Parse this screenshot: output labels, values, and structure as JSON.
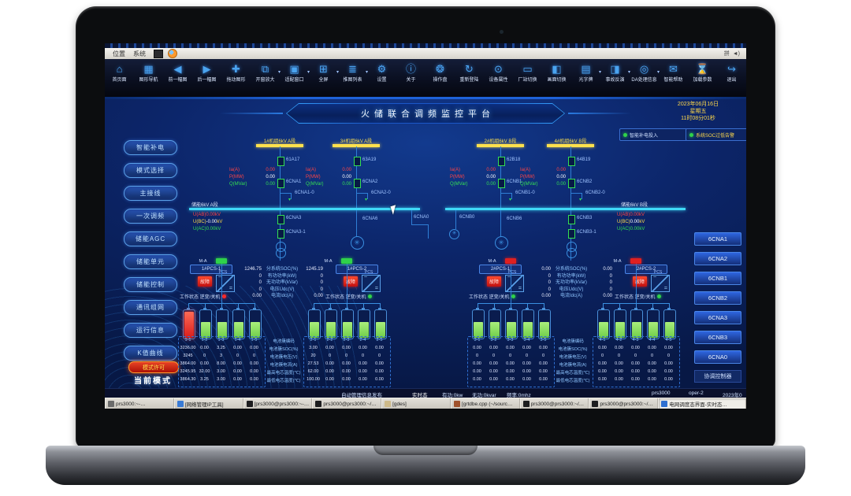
{
  "window": {
    "menus": [
      "位置",
      "系统"
    ],
    "tray_text": "拼"
  },
  "toolbar": {
    "items": [
      {
        "id": "home",
        "label": "首页面",
        "glyph": "⌂"
      },
      {
        "id": "graph-nav",
        "label": "图形导航",
        "glyph": "▦"
      },
      {
        "id": "prev-view",
        "label": "前一幅图",
        "glyph": "◀"
      },
      {
        "id": "next-view",
        "label": "后一幅图",
        "glyph": "▶"
      },
      {
        "id": "pan",
        "label": "拖动图形",
        "glyph": "✚"
      },
      {
        "id": "zoom-window",
        "label": "开窗放大",
        "glyph": "⧉",
        "dropdown": true
      },
      {
        "id": "fit-window",
        "label": "适配窗口",
        "glyph": "▣",
        "dropdown": true
      },
      {
        "id": "fullscreen",
        "label": "全屏",
        "glyph": "⊞",
        "dropdown": true
      },
      {
        "id": "view-list",
        "label": "推图列表",
        "glyph": "≣",
        "dropdown": true
      },
      {
        "id": "settings",
        "label": "设置",
        "glyph": "⚙"
      },
      {
        "id": "about",
        "label": "关于",
        "glyph": "ⓘ"
      },
      {
        "id": "operation-panel",
        "label": "操作盘",
        "glyph": "❂"
      },
      {
        "id": "relogin",
        "label": "重新登陆",
        "glyph": "↻"
      },
      {
        "id": "device-props",
        "label": "设备属性",
        "glyph": "⊙"
      },
      {
        "id": "station-switch",
        "label": "厂站切换",
        "glyph": "▭"
      },
      {
        "id": "screen-switch",
        "label": "画面切换",
        "glyph": "◧"
      },
      {
        "id": "light-board",
        "label": "光字牌",
        "glyph": "▤",
        "dropdown": true
      },
      {
        "id": "incident-replay",
        "label": "事故反演",
        "glyph": "◨",
        "dropdown": true
      },
      {
        "id": "da-info",
        "label": "DA处理信息",
        "glyph": "◎",
        "dropdown": true
      },
      {
        "id": "smart-help",
        "label": "智能帮助",
        "glyph": "✉"
      },
      {
        "id": "load-params",
        "label": "加载参数",
        "glyph": "⌛"
      },
      {
        "id": "exit",
        "label": "退出",
        "glyph": "↪"
      }
    ]
  },
  "header": {
    "title": "火储联合调频监控平台",
    "date": "2023年06月16日",
    "weekday": "星期五",
    "time": "11时08分01秒",
    "indicators": [
      {
        "label": "智能补电投入",
        "color": "#2fd24a",
        "text_color": "#cfe0ff"
      },
      {
        "label": "系统SOC过低告警",
        "color": "#2fd24a",
        "text_color": "#ffd94a"
      }
    ]
  },
  "left_menu": [
    "智能补电",
    "模式选择",
    "主接线",
    "一次调频",
    "储能AGC",
    "储能单元",
    "储能控制",
    "通讯组网",
    "运行信息",
    "K值曲线"
  ],
  "right_menu": {
    "buttons": [
      "6CNA1",
      "6CNA2",
      "6CNB1",
      "6CNB2",
      "6CNA3",
      "6CNB3",
      "6CNA0"
    ],
    "footer": "协调控制器"
  },
  "mode": {
    "badge": "模式许可",
    "label": "当前模式"
  },
  "diagram": {
    "meas_labels": {
      "ia": "Ia(A)",
      "p": "P(MW)",
      "q": "Q(MVar)"
    },
    "feeders": [
      {
        "bus": "1#机组6kV A段",
        "cb_top": "61A17",
        "cb_mid": "6CNA1",
        "branch": "6CNA1-0",
        "ia": "0.00",
        "p": "0.00",
        "q": "0.00"
      },
      {
        "bus": "3#机组6kV A段",
        "cb_top": "63A19",
        "cb_mid": "6CNA2",
        "branch": "6CNA2-0",
        "ia": "0.00",
        "p": "0.00",
        "q": "0.00"
      },
      {
        "bus": "2#机组6kV B段",
        "cb_top": "62B18",
        "cb_mid": "6CNB1",
        "branch": "6CNB1-0",
        "ia": "0.00",
        "p": "0.00",
        "q": "0.00"
      },
      {
        "bus": "4#机组6kV B段",
        "cb_top": "64B19",
        "cb_mid": "6CNB2",
        "branch": "6CNB2-0",
        "ia": "0.00",
        "p": "0.00",
        "q": "0.00"
      }
    ],
    "bus_a": {
      "label": "储能6kV A段",
      "u_rows": [
        {
          "label": "U(AB)",
          "value": "0.00",
          "unit": "kV",
          "color": "#ff4545",
          "vcolor": "#ff4545"
        },
        {
          "label": "U(BC)",
          "value": "-0.00",
          "unit": "kV",
          "color": "#ffd94a",
          "vcolor": "#ffffff"
        },
        {
          "label": "U(AC)",
          "value": "0.00",
          "unit": "kV",
          "color": "#35e052",
          "vcolor": "#35e052"
        }
      ]
    },
    "bus_b": {
      "label": "储能6kV B段",
      "u_rows": [
        {
          "label": "U(AB)",
          "value": "0.00",
          "unit": "kV",
          "color": "#ff4545",
          "vcolor": "#ff4545"
        },
        {
          "label": "U(BC)",
          "value": "0.00",
          "unit": "kV",
          "color": "#ffd94a",
          "vcolor": "#ffffff"
        },
        {
          "label": "U(AC)",
          "value": "0.00",
          "unit": "kV",
          "color": "#35e052",
          "vcolor": "#35e052"
        }
      ]
    },
    "devices": {
      "f1": [
        "6CNA3",
        "6CNA3-1"
      ],
      "g1": "6CNA6",
      "br_a": "6CNA0",
      "br_b": "6CNB0",
      "g2": "6CNB6",
      "f4": [
        "6CNB3",
        "6CNB3-1"
      ]
    },
    "icons": {
      "ground_transformer": "✳",
      "branch_arrow": "▾"
    }
  },
  "pcs": {
    "status_label": "工作状态 逆变/关机",
    "fault_label": "故障",
    "converter_label": "PCS",
    "converter_glyphs": [
      "~",
      "="
    ],
    "row_labels": [
      "分系统SOC(%)",
      "有功功率(kW)",
      "无功功率(kVar)",
      "电压Udc(V)",
      "电流Idc(A)"
    ],
    "left": {
      "units": [
        {
          "name": "1#PCS-1",
          "led": "#ff2a2a"
        },
        {
          "name": "1#PCS-2",
          "led": "#2fd24a"
        }
      ],
      "values_left": [
        "1246.75",
        "0",
        "0",
        "0",
        "0.00"
      ],
      "values_right": [
        "1245.19",
        "0",
        "0",
        "0",
        "0.00"
      ]
    },
    "right": {
      "units": [
        {
          "name": "2#PCS-1",
          "led": "#2fd24a"
        },
        {
          "name": "2#PCS-2",
          "led": "#2fd24a"
        }
      ],
      "values_left": [
        "0.00",
        "0",
        "0",
        "0",
        "0.00"
      ],
      "values_right": [
        "0.00",
        "0",
        "0",
        "0",
        "0.00"
      ]
    }
  },
  "batteries": {
    "switch_label": "M-A",
    "groups": [
      {
        "switch": "closed",
        "cells": [
          "alarm",
          "ok",
          "ok",
          "ok",
          "ok"
        ]
      },
      {
        "switch": "closed",
        "cells": [
          "ok",
          "ok",
          "ok",
          "ok",
          "ok"
        ]
      },
      {
        "switch": "open",
        "cells": [
          "ok",
          "ok",
          "ok",
          "ok",
          "ok"
        ]
      },
      {
        "switch": "open",
        "cells": [
          "ok",
          "ok",
          "ok",
          "ok",
          "ok"
        ]
      }
    ]
  },
  "tables": {
    "row_labels": [
      "电池簇编码",
      "电池簇SOC(%)",
      "电池簇电压(V)",
      "电池簇电流(A)",
      "最高电芯温度(℃)",
      "最低电芯温度(℃)"
    ],
    "left": {
      "ids": [
        "1-1",
        "1-2",
        "1-3",
        "1-4",
        "1-5",
        "2-1",
        "2-2",
        "2-3",
        "2-4",
        "2-5"
      ],
      "rows": [
        [
          "3236.00",
          "0.00",
          "3.25",
          "0.00",
          "0.00",
          "3.00",
          "0.00",
          "0.00",
          "0.00",
          "0.00"
        ],
        [
          "3245",
          "0",
          "3",
          "0",
          "0",
          "20",
          "0",
          "0",
          "0",
          "0"
        ],
        [
          "3864.00",
          "0.00",
          "8.00",
          "0.00",
          "0.00",
          "27.53",
          "0.00",
          "0.00",
          "0.00",
          "0.00"
        ],
        [
          "3245.95",
          "32.00",
          "3.00",
          "0.00",
          "0.00",
          "62.00",
          "0.00",
          "0.00",
          "0.00",
          "0.00"
        ],
        [
          "3864.30",
          "3.25",
          "3.00",
          "0.00",
          "0.00",
          "100.00",
          "0.00",
          "0.00",
          "0.00",
          "0.00"
        ]
      ]
    },
    "right": {
      "ids": [
        "3-1",
        "3-2",
        "3-3",
        "3-4",
        "3-5",
        "4-1",
        "4-2",
        "4-3",
        "4-4",
        "4-5"
      ],
      "rows": [
        [
          "0.00",
          "0.00",
          "0.00",
          "0.00",
          "0.00",
          "0.00",
          "0.00",
          "0.00",
          "0.00",
          "0.00"
        ],
        [
          "0",
          "0",
          "0",
          "0",
          "0",
          "0",
          "0",
          "0",
          "0",
          "0"
        ],
        [
          "0.00",
          "0.00",
          "0.00",
          "0.00",
          "0.00",
          "0.00",
          "0.00",
          "0.00",
          "0.00",
          "0.00"
        ],
        [
          "0.00",
          "0.00",
          "0.00",
          "0.00",
          "0.00",
          "0.00",
          "0.00",
          "0.00",
          "0.00",
          "0.00"
        ],
        [
          "0.00",
          "0.00",
          "0.00",
          "0.00",
          "0.00",
          "0.00",
          "0.00",
          "0.00",
          "0.00",
          "0.00"
        ]
      ]
    }
  },
  "statusline": [
    "自动管理信息发布",
    "实时态",
    "有功:0kw",
    "无功:0kvar",
    "频率:0mhz",
    "prs3000",
    "oper-2",
    "2023年0"
  ],
  "taskbar": [
    {
      "label": "prs3000:~-…"
    },
    {
      "label": "[网络管理IP工具]"
    },
    {
      "label": "[prs3000@prs3000:~-…"
    },
    {
      "label": "prs3000@prs3000:~/…"
    },
    {
      "label": "[gdes]"
    },
    {
      "label": "[grtdbe.cpp (~/sourc…"
    },
    {
      "label": "prs3000@prs3000:~/…"
    },
    {
      "label": "prs3000@prs3000:~/…"
    },
    {
      "label": "电网调度态界面-实时态…",
      "active": true
    }
  ]
}
